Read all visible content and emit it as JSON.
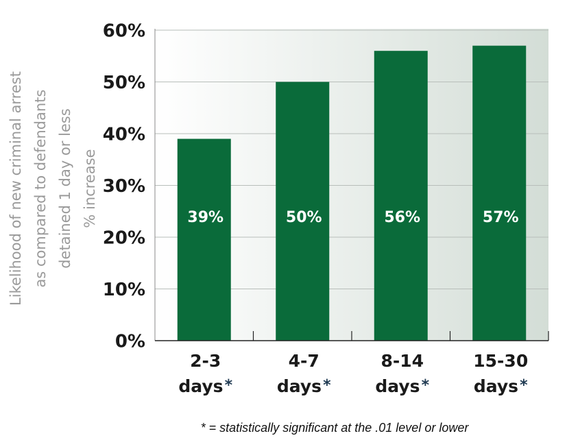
{
  "chart_data": {
    "type": "bar",
    "ylabel": [
      "Likelihood of new criminal arrest",
      "as compared to defendants",
      "detained 1 day or less",
      "% increase"
    ],
    "categories": [
      [
        "2-3",
        "days"
      ],
      [
        "4-7",
        "days"
      ],
      [
        "8-14",
        "days"
      ],
      [
        "15-30",
        "days"
      ]
    ],
    "category_marker": "*",
    "values": [
      39,
      50,
      56,
      57
    ],
    "value_labels": [
      "39%",
      "50%",
      "56%",
      "57%"
    ],
    "color": "#0a6b3a",
    "ylim": [
      0,
      60
    ],
    "yticks": [
      {
        "value": 0,
        "label": "0%"
      },
      {
        "value": 10,
        "label": "10%"
      },
      {
        "value": 20,
        "label": "20%"
      },
      {
        "value": 30,
        "label": "30%"
      },
      {
        "value": 40,
        "label": "40%"
      },
      {
        "value": 50,
        "label": "50%"
      },
      {
        "value": 60,
        "label": "60%"
      }
    ],
    "grid": true,
    "footnote": "* = statistically significant at the .01 level or lower"
  }
}
